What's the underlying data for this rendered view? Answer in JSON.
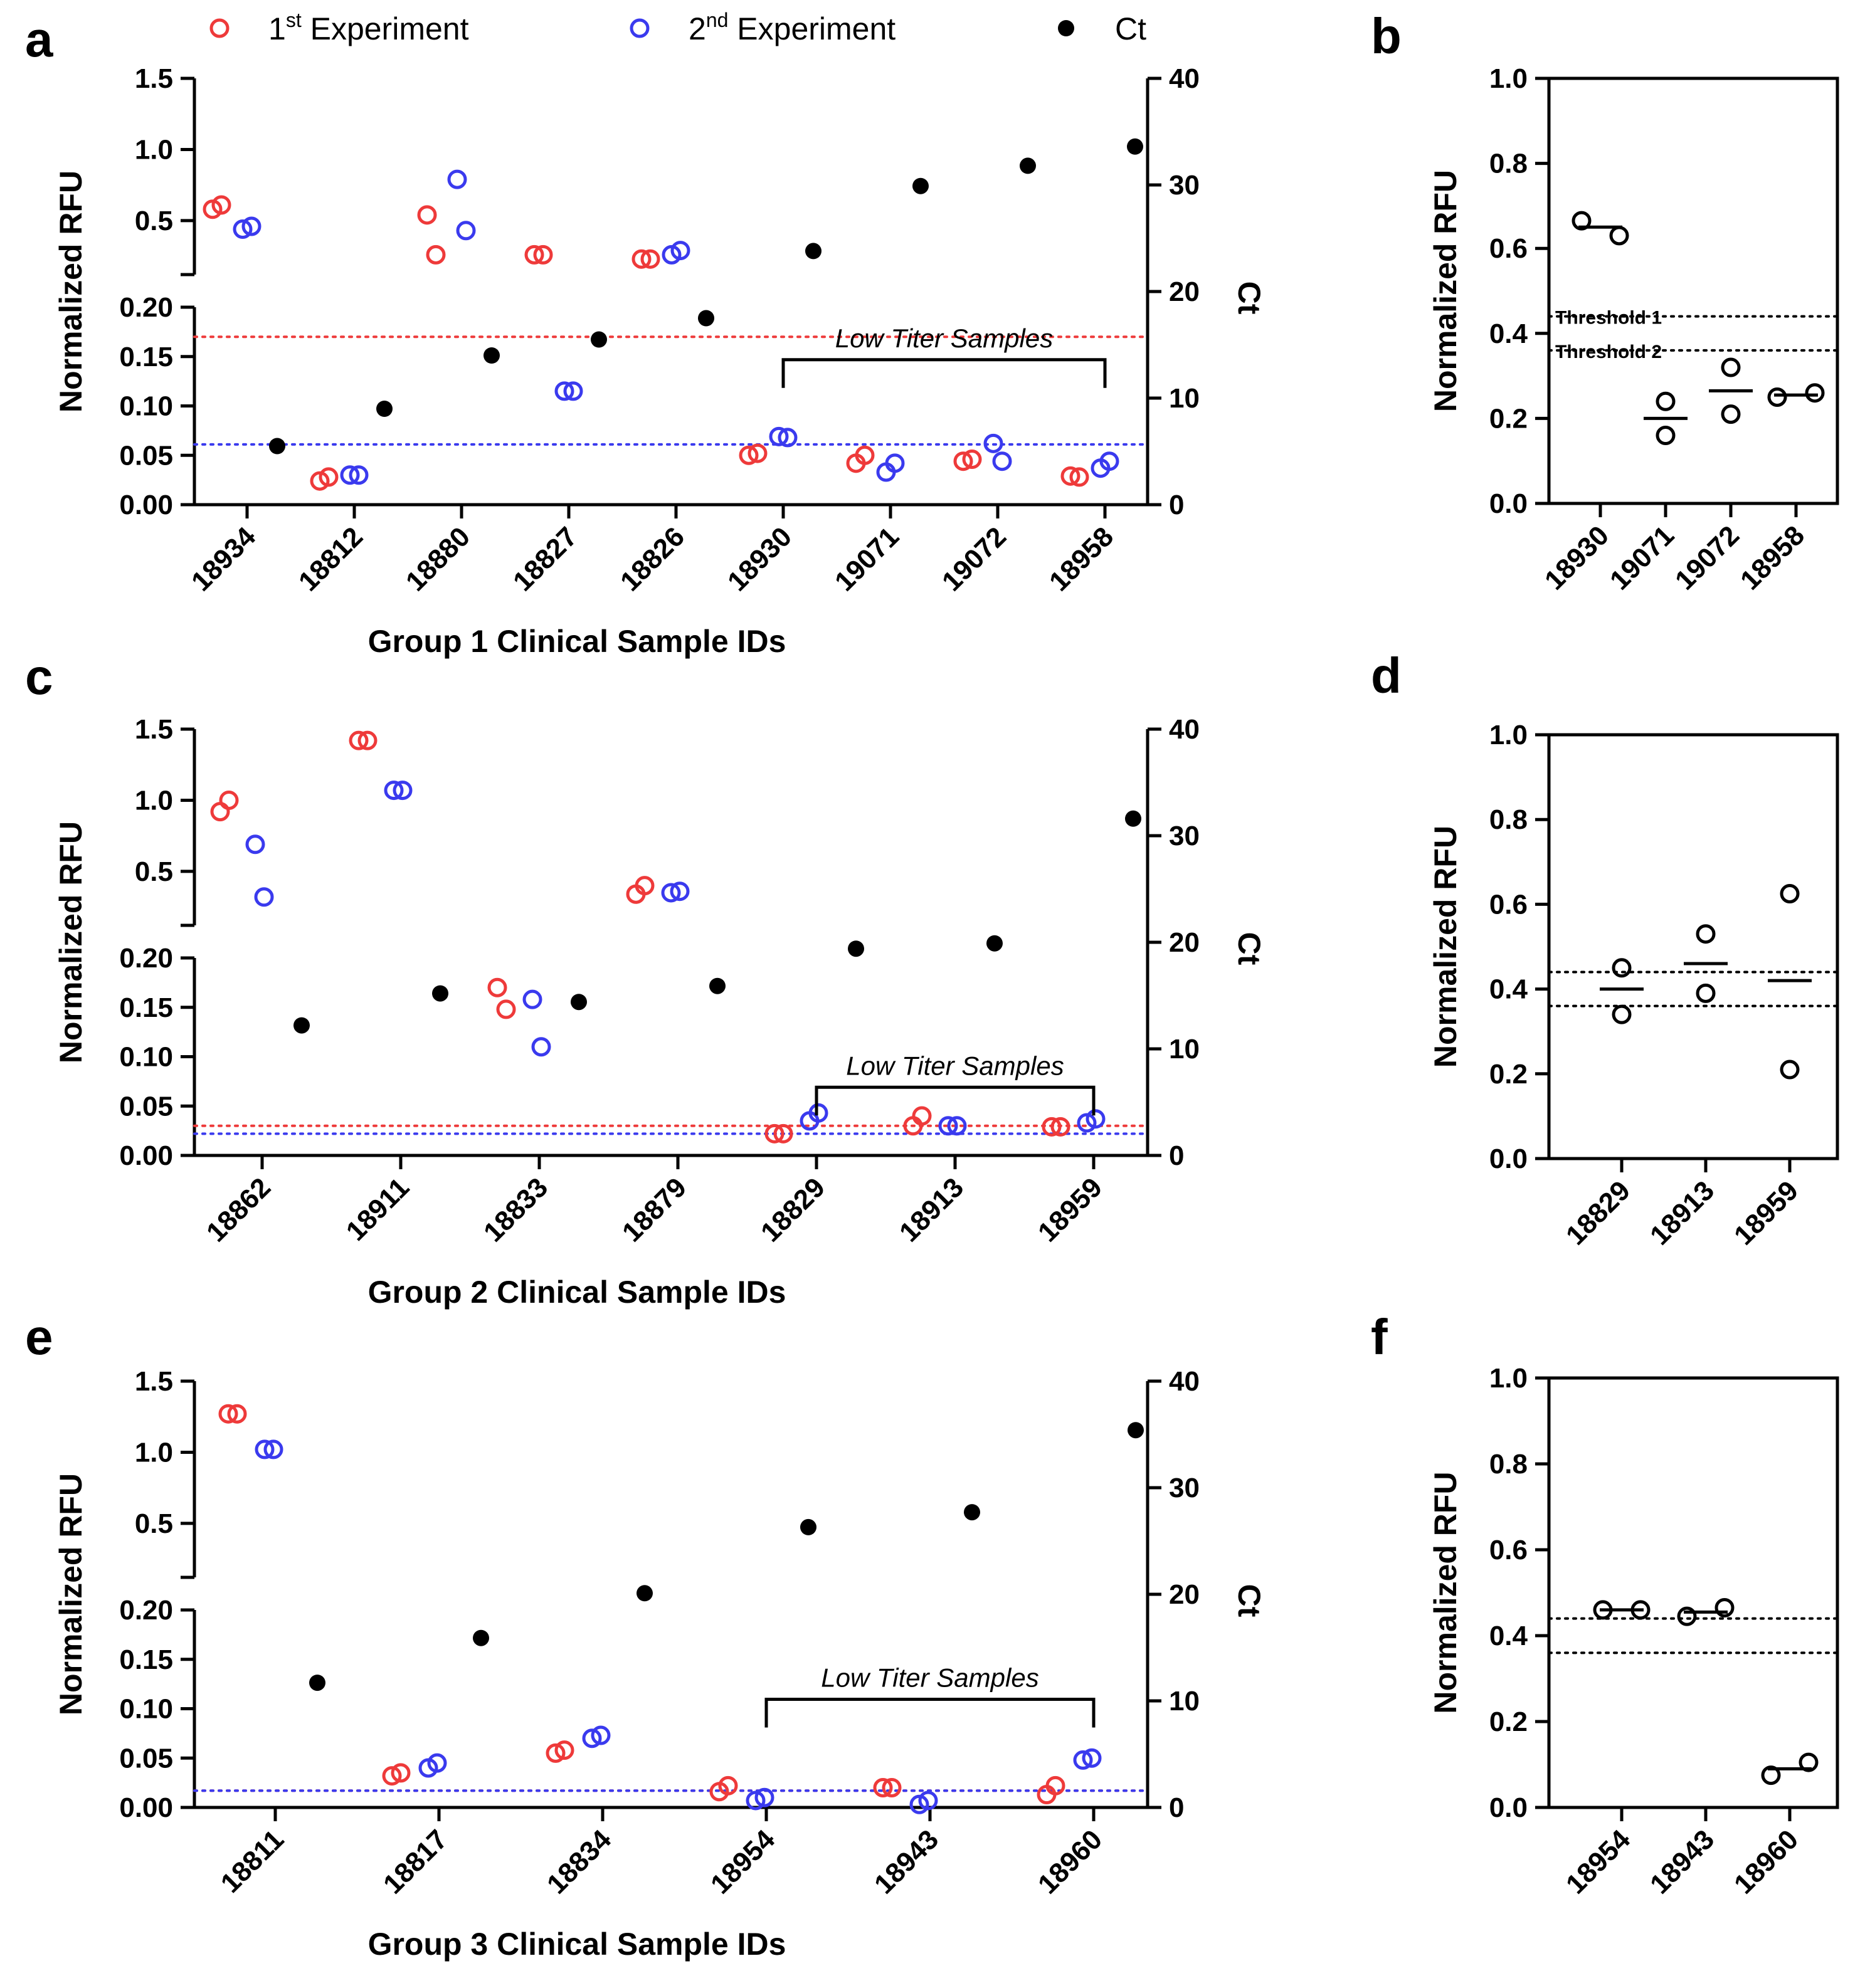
{
  "legend": [
    {
      "prefix": "1",
      "sup": "st",
      "suffix": " Experiment",
      "color": "#ee3a3a",
      "marker": "open-circle"
    },
    {
      "prefix": "2",
      "sup": "nd",
      "suffix": " Experiment",
      "color": "#3a3aee",
      "marker": "open-circle"
    },
    {
      "prefix": "Ct",
      "sup": "",
      "suffix": "",
      "color": "#000000",
      "marker": "filled-circle"
    }
  ],
  "chart_data": [
    {
      "panel": "a",
      "type": "scatter",
      "xlabel": "Group 1 Clinical Sample IDs",
      "ylabel": "Normalized RFU",
      "y2label": "Ct",
      "y_lower": {
        "range": [
          0,
          0.2
        ],
        "ticks": [
          "0.00",
          "0.05",
          "0.10",
          "0.15",
          "0.20"
        ],
        "tick_values": [
          0,
          0.05,
          0.1,
          0.15,
          0.2
        ]
      },
      "y_upper": {
        "range": [
          0.2,
          1.5
        ],
        "ticks": [
          "0.5",
          "1.0",
          "1.5"
        ],
        "tick_values": [
          0.5,
          1.0,
          1.5
        ]
      },
      "y2": {
        "range": [
          0,
          40
        ],
        "ticks": [
          "0",
          "10",
          "20",
          "30",
          "40"
        ],
        "tick_values": [
          0,
          10,
          20,
          30,
          40
        ]
      },
      "categories": [
        "18934",
        "18812",
        "18880",
        "18827",
        "18826",
        "18930",
        "19071",
        "19072",
        "18958"
      ],
      "series": [
        {
          "name": "1st Experiment",
          "color": "#ee3a3a",
          "values": [
            [
              0.58,
              0.61
            ],
            [
              0.024,
              0.028
            ],
            [
              0.54,
              0.26
            ],
            [
              0.26,
              0.26
            ],
            [
              0.23,
              0.23
            ],
            [
              0.05,
              0.052
            ],
            [
              0.042,
              0.05
            ],
            [
              0.044,
              0.046
            ],
            [
              0.029,
              0.028
            ]
          ]
        },
        {
          "name": "2nd Experiment",
          "color": "#3a3aee",
          "values": [
            [
              0.44,
              0.46
            ],
            [
              0.03,
              0.03
            ],
            [
              0.79,
              0.43
            ],
            [
              0.115,
              0.115
            ],
            [
              0.26,
              0.29
            ],
            [
              0.069,
              0.068
            ],
            [
              0.033,
              0.042
            ],
            [
              0.062,
              0.044
            ],
            [
              0.037,
              0.044
            ]
          ]
        },
        {
          "name": "Ct",
          "color": "#000000",
          "axis": "y2",
          "values": [
            5.5,
            9.0,
            14.0,
            15.5,
            17.5,
            23.8,
            29.9,
            31.8,
            33.6
          ]
        }
      ],
      "thresholds": [
        {
          "value": 0.17,
          "color": "#ee3a3a"
        },
        {
          "value": 0.061,
          "color": "#3a3aee"
        }
      ],
      "bracket": {
        "label": "Low Titer Samples",
        "from": "18930",
        "to": "18958"
      }
    },
    {
      "panel": "b",
      "type": "scatter",
      "ylabel": "Normalized RFU",
      "ylim": [
        0,
        1.0
      ],
      "ticks": [
        "0.0",
        "0.2",
        "0.4",
        "0.6",
        "0.8",
        "1.0"
      ],
      "tick_values": [
        0,
        0.2,
        0.4,
        0.6,
        0.8,
        1.0
      ],
      "categories": [
        "18930",
        "19071",
        "19072",
        "18958"
      ],
      "points": [
        [
          0.665,
          0.63
        ],
        [
          0.24,
          0.16
        ],
        [
          0.32,
          0.21
        ],
        [
          0.25,
          0.26
        ]
      ],
      "means": [
        0.65,
        0.2,
        0.265,
        0.255
      ],
      "thresholds": [
        {
          "value": 0.44,
          "label": "Threshold 1"
        },
        {
          "value": 0.36,
          "label": "Threshold 2"
        }
      ]
    },
    {
      "panel": "c",
      "type": "scatter",
      "xlabel": "Group 2 Clinical Sample IDs",
      "ylabel": "Normalized RFU",
      "y2label": "Ct",
      "y_lower": {
        "range": [
          0,
          0.2
        ],
        "ticks": [
          "0.00",
          "0.05",
          "0.10",
          "0.15",
          "0.20"
        ],
        "tick_values": [
          0,
          0.05,
          0.1,
          0.15,
          0.2
        ]
      },
      "y_upper": {
        "range": [
          0.2,
          1.5
        ],
        "ticks": [
          "0.5",
          "1.0",
          "1.5"
        ],
        "tick_values": [
          0.5,
          1.0,
          1.5
        ]
      },
      "y2": {
        "range": [
          0,
          40
        ],
        "ticks": [
          "0",
          "10",
          "20",
          "30",
          "40"
        ],
        "tick_values": [
          0,
          10,
          20,
          30,
          40
        ]
      },
      "categories": [
        "18862",
        "18911",
        "18833",
        "18879",
        "18829",
        "18913",
        "18959"
      ],
      "series": [
        {
          "name": "1st Experiment",
          "color": "#ee3a3a",
          "values": [
            [
              0.92,
              1.0
            ],
            [
              1.42,
              1.42
            ],
            [
              0.17,
              0.148
            ],
            [
              0.34,
              0.4
            ],
            [
              0.022,
              0.022
            ],
            [
              0.03,
              0.04
            ],
            [
              0.029,
              0.029
            ]
          ]
        },
        {
          "name": "2nd Experiment",
          "color": "#3a3aee",
          "values": [
            [
              0.69,
              0.32
            ],
            [
              1.07,
              1.07
            ],
            [
              0.158,
              0.11
            ],
            [
              0.35,
              0.36
            ],
            [
              0.035,
              0.043
            ],
            [
              0.03,
              0.03
            ],
            [
              0.033,
              0.037
            ]
          ]
        },
        {
          "name": "Ct",
          "color": "#000000",
          "axis": "y2",
          "values": [
            12.2,
            15.2,
            14.4,
            15.9,
            19.4,
            19.9,
            31.6
          ]
        }
      ],
      "thresholds": [
        {
          "value": 0.03,
          "color": "#ee3a3a"
        },
        {
          "value": 0.022,
          "color": "#3a3aee"
        }
      ],
      "bracket": {
        "label": "Low Titer Samples",
        "from": "18829",
        "to": "18959"
      }
    },
    {
      "panel": "d",
      "type": "scatter",
      "ylabel": "Normalized RFU",
      "ylim": [
        0,
        1.0
      ],
      "ticks": [
        "0.0",
        "0.2",
        "0.4",
        "0.6",
        "0.8",
        "1.0"
      ],
      "tick_values": [
        0,
        0.2,
        0.4,
        0.6,
        0.8,
        1.0
      ],
      "categories": [
        "18829",
        "18913",
        "18959"
      ],
      "points": [
        [
          0.45,
          0.34
        ],
        [
          0.53,
          0.39
        ],
        [
          0.625,
          0.21
        ]
      ],
      "means": [
        0.4,
        0.46,
        0.42
      ],
      "thresholds": [
        {
          "value": 0.44,
          "label": ""
        },
        {
          "value": 0.36,
          "label": ""
        }
      ]
    },
    {
      "panel": "e",
      "type": "scatter",
      "xlabel": "Group 3 Clinical Sample IDs",
      "ylabel": "Normalized RFU",
      "y2label": "Ct",
      "y_lower": {
        "range": [
          0,
          0.2
        ],
        "ticks": [
          "0.00",
          "0.05",
          "0.10",
          "0.15",
          "0.20"
        ],
        "tick_values": [
          0,
          0.05,
          0.1,
          0.15,
          0.2
        ]
      },
      "y_upper": {
        "range": [
          0.2,
          1.5
        ],
        "ticks": [
          "0.5",
          "1.0",
          "1.5"
        ],
        "tick_values": [
          0.5,
          1.0,
          1.5
        ]
      },
      "y2": {
        "range": [
          0,
          40
        ],
        "ticks": [
          "0",
          "10",
          "20",
          "30",
          "40"
        ],
        "tick_values": [
          0,
          10,
          20,
          30,
          40
        ]
      },
      "categories": [
        "18811",
        "18817",
        "18834",
        "18954",
        "18943",
        "18960"
      ],
      "series": [
        {
          "name": "1st Experiment",
          "color": "#ee3a3a",
          "values": [
            [
              1.27,
              1.27
            ],
            [
              0.032,
              0.035
            ],
            [
              0.055,
              0.058
            ],
            [
              0.016,
              0.022
            ],
            [
              0.02,
              0.02
            ],
            [
              0.013,
              0.022
            ]
          ]
        },
        {
          "name": "2nd Experiment",
          "color": "#3a3aee",
          "values": [
            [
              1.02,
              1.02
            ],
            [
              0.04,
              0.045
            ],
            [
              0.07,
              0.073
            ],
            [
              0.007,
              0.01
            ],
            [
              0.003,
              0.007
            ],
            [
              0.048,
              0.05
            ]
          ]
        },
        {
          "name": "Ct",
          "color": "#000000",
          "axis": "y2",
          "values": [
            11.7,
            15.9,
            20.1,
            26.3,
            27.7,
            35.4
          ]
        }
      ],
      "thresholds": [
        {
          "value": 0.017,
          "color": "#ee3a3a"
        },
        {
          "value": 0.017,
          "color": "#3a3aee"
        }
      ],
      "bracket": {
        "label": "Low Titer Samples",
        "from": "18954",
        "to": "18960"
      }
    },
    {
      "panel": "f",
      "type": "scatter",
      "ylabel": "Normalized RFU",
      "ylim": [
        0,
        1.0
      ],
      "ticks": [
        "0.0",
        "0.2",
        "0.4",
        "0.6",
        "0.8",
        "1.0"
      ],
      "tick_values": [
        0,
        0.2,
        0.4,
        0.6,
        0.8,
        1.0
      ],
      "categories": [
        "18954",
        "18943",
        "18960"
      ],
      "points": [
        [
          0.46,
          0.46
        ],
        [
          0.445,
          0.465
        ],
        [
          0.075,
          0.105
        ]
      ],
      "means": [
        0.46,
        0.455,
        0.09
      ],
      "thresholds": [
        {
          "value": 0.44,
          "label": ""
        },
        {
          "value": 0.36,
          "label": ""
        }
      ]
    }
  ]
}
